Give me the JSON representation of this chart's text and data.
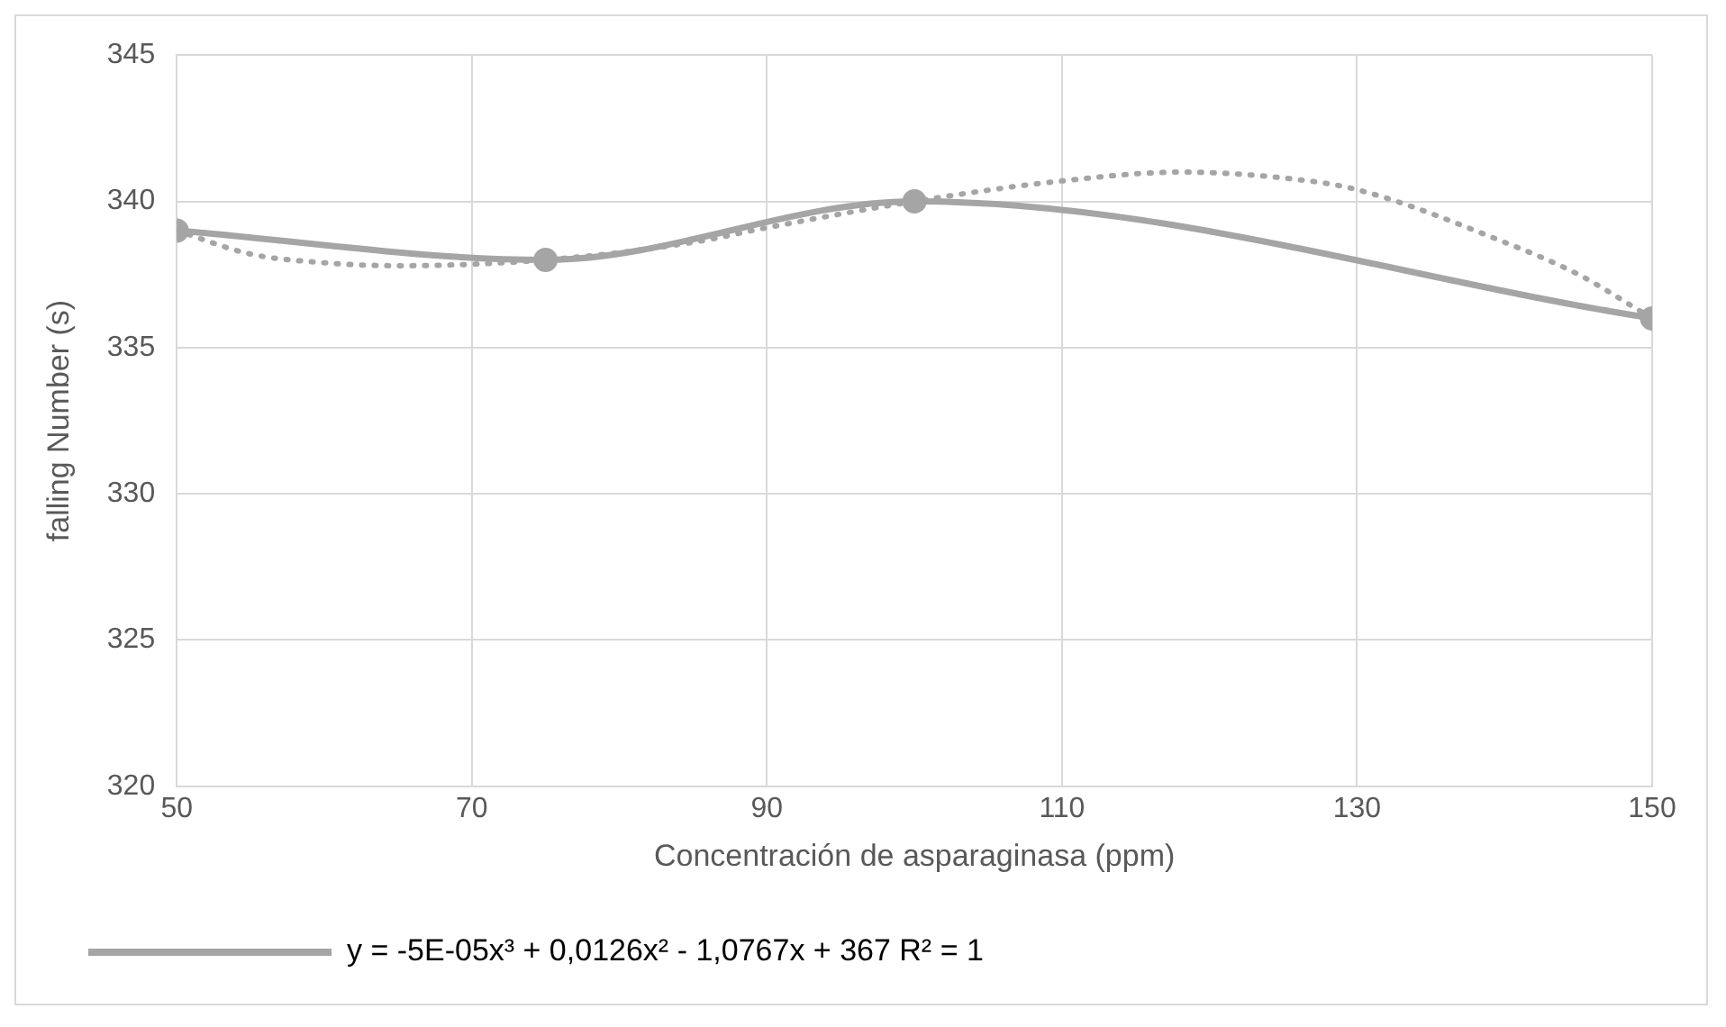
{
  "chart_data": {
    "type": "line",
    "xlabel": "Concentración de asparaginasa (ppm)",
    "ylabel": "falling Number (s)",
    "xlim": [
      50,
      150
    ],
    "xticks": [
      50,
      70,
      90,
      110,
      130,
      150
    ],
    "ylim": [
      320,
      345
    ],
    "yticks": [
      320,
      325,
      330,
      335,
      340,
      345
    ],
    "grid": true,
    "legend": "bottom",
    "series": [
      {
        "name": "y = -5E-05x³ + 0,0126x² - 1,0767x + 367 R² = 1",
        "color": "#a5a5a5",
        "x": [
          50,
          75,
          100,
          150
        ],
        "values": [
          339,
          338,
          340,
          336
        ],
        "marker": "circle",
        "line_style": "solid"
      },
      {
        "color": "#a5a5a5",
        "x": [
          50,
          55,
          60,
          65,
          75,
          85,
          90,
          100,
          110,
          118,
          125,
          130,
          140,
          145,
          150
        ],
        "values": [
          339,
          338.2,
          337.9,
          337.8,
          338,
          338.6,
          339.1,
          340,
          340.7,
          341,
          340.8,
          340.4,
          338.6,
          337.5,
          336
        ],
        "marker": "none",
        "line_style": "dotted"
      }
    ]
  }
}
